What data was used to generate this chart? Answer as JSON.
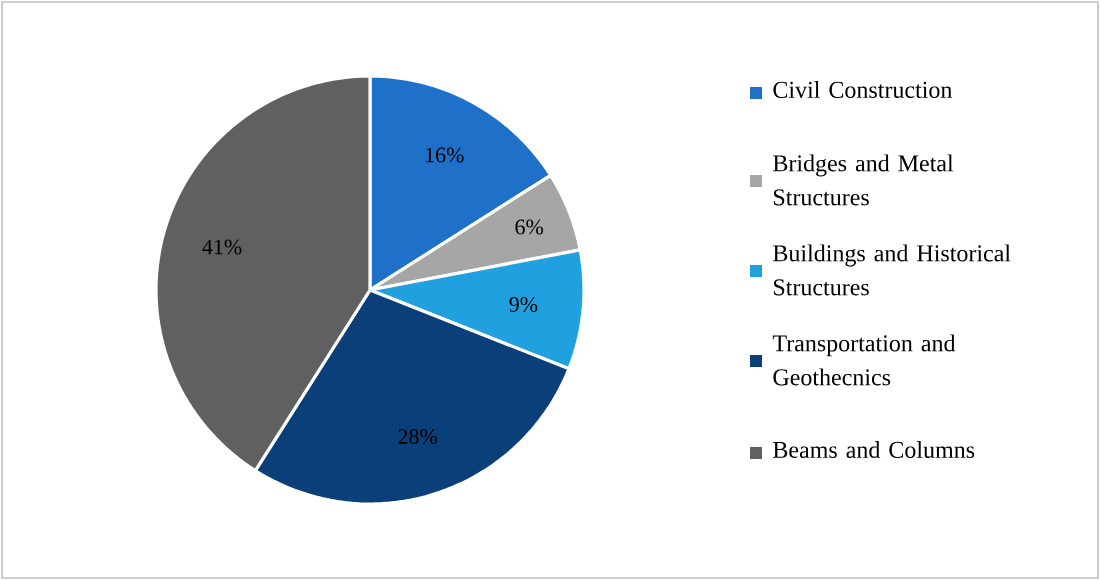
{
  "chart_data": {
    "type": "pie",
    "categories": [
      "Civil Construction",
      "Bridges and Metal Structures",
      "Buildings and Historical Structures",
      "Transportation and Geothecnics",
      "Beams and Columns"
    ],
    "values": [
      16,
      6,
      9,
      28,
      41
    ],
    "value_labels": [
      "16%",
      "6%",
      "9%",
      "28%",
      "41%"
    ],
    "colors": [
      "#1f70c8",
      "#a6a6a6",
      "#20a0de",
      "#0b3f7a",
      "#606060"
    ],
    "legend": "right"
  }
}
